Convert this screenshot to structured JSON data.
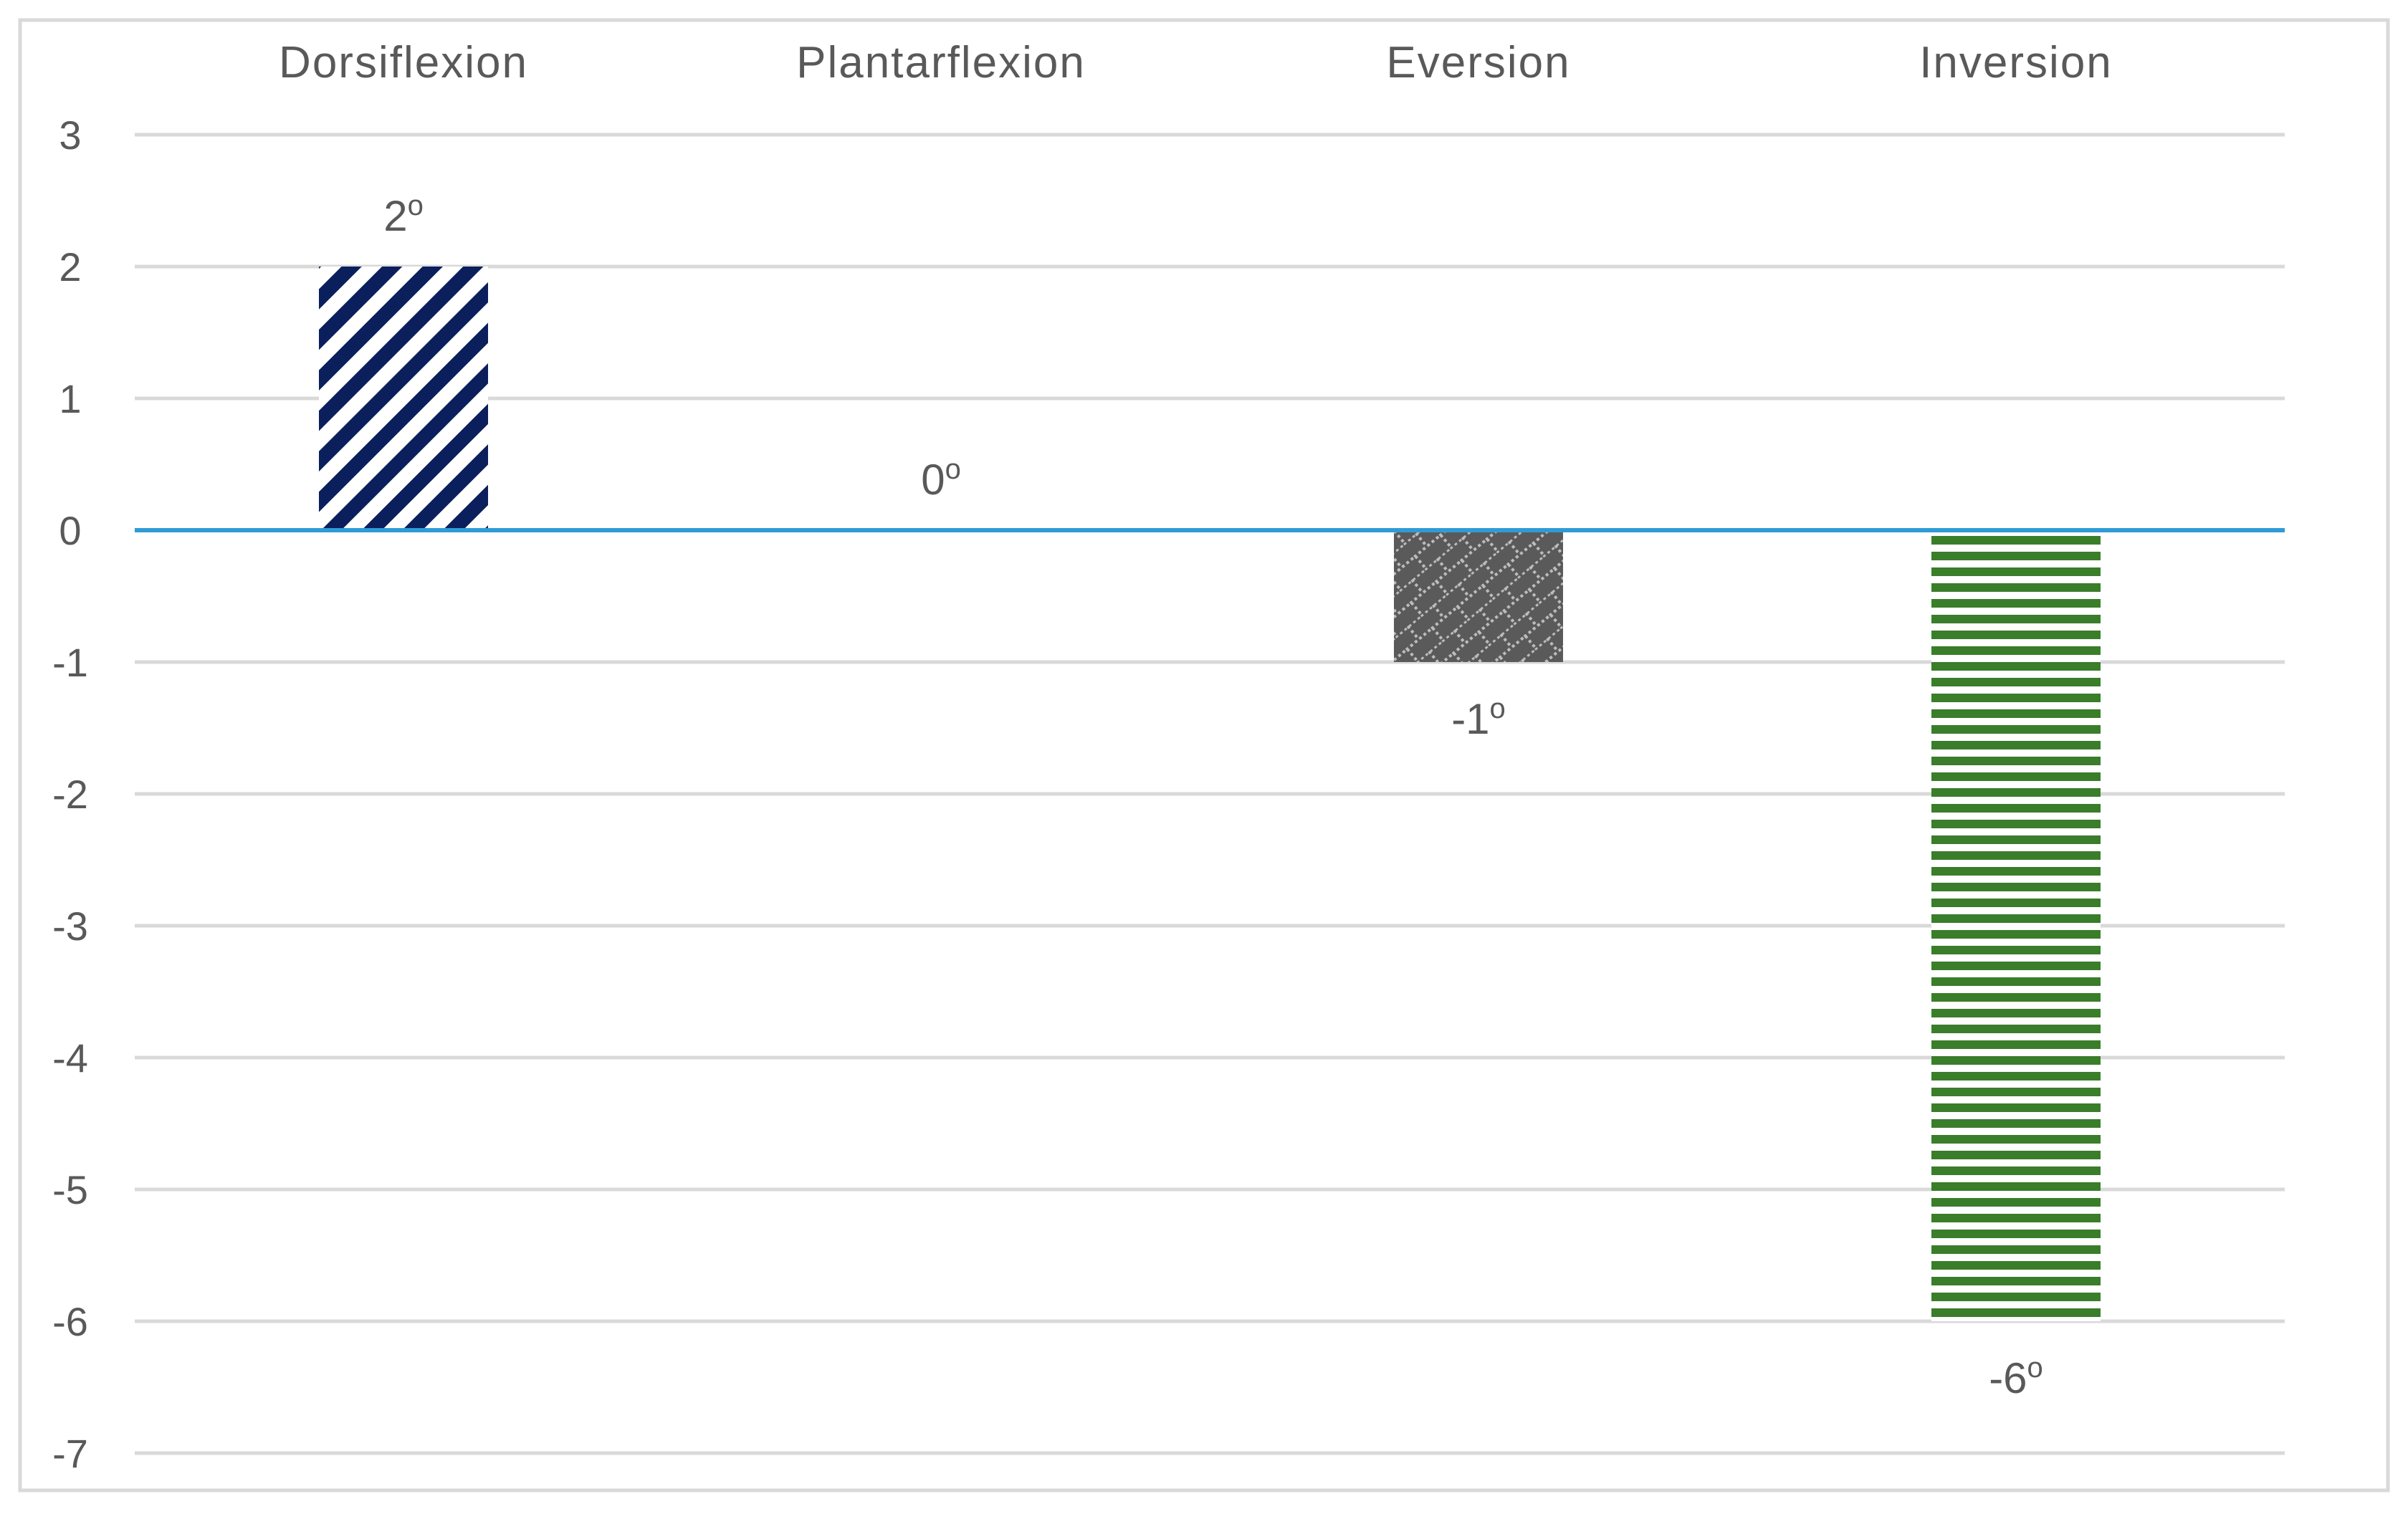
{
  "chart_data": {
    "type": "bar",
    "title": "",
    "xlabel": "",
    "ylabel": "",
    "categories": [
      "Dorsiflexion",
      "Plantarflexion",
      "Eversion",
      "Inversion"
    ],
    "values": [
      2,
      0,
      -1,
      -6
    ],
    "data_labels": [
      "2",
      "0",
      "-1",
      "-6"
    ],
    "data_label_superscript": "o",
    "ylim": [
      -7,
      3
    ],
    "yticks": [
      "3",
      "2",
      "1",
      "0",
      "-1",
      "-2",
      "-3",
      "-4",
      "-5",
      "-6",
      "-7"
    ],
    "grid": true,
    "category_axis_position": "top",
    "legend": "none",
    "bar_styles": [
      {
        "pattern": "diagonal-stripes",
        "fg": "#0b1f5c",
        "bg": "#ffffff"
      },
      {
        "pattern": "none",
        "fg": "#4a4a4a",
        "bg": "#ffffff"
      },
      {
        "pattern": "brick",
        "fg": "#5a5a5a",
        "bg": "#bcbcbc"
      },
      {
        "pattern": "horizontal-stripes",
        "fg": "#3a7d2a",
        "bg": "#ffffff"
      }
    ]
  },
  "colors": {
    "frame": "#d9d9d9",
    "gridline": "#d9d9d9",
    "zero_line": "#2e9bd6",
    "text": "#595959"
  }
}
